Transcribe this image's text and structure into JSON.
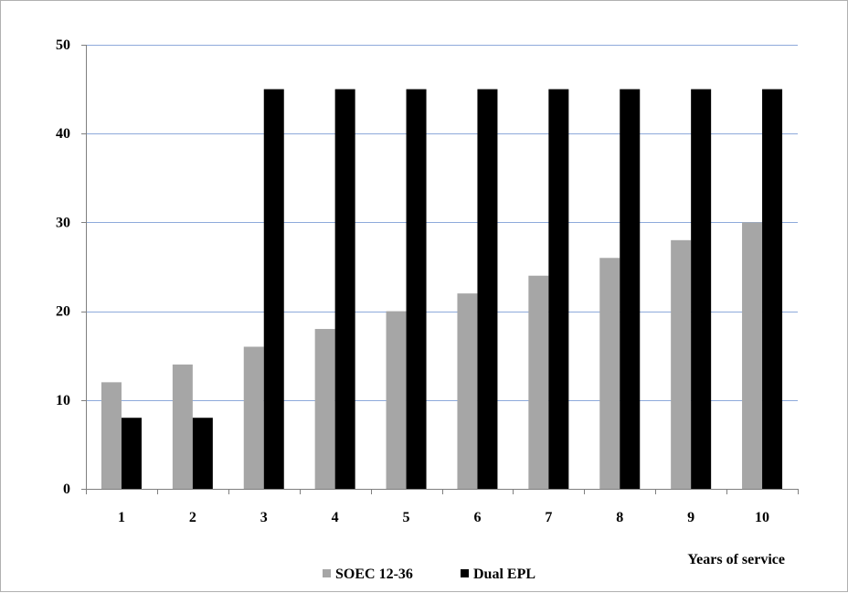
{
  "chart_data": {
    "type": "bar",
    "title": "",
    "xlabel": "Years of service",
    "ylabel": "",
    "categories": [
      "1",
      "2",
      "3",
      "4",
      "5",
      "6",
      "7",
      "8",
      "9",
      "10"
    ],
    "series": [
      {
        "name": "SOEC 12-36",
        "color": "#a6a6a6",
        "values": [
          12,
          14,
          16,
          18,
          20,
          22,
          24,
          26,
          28,
          30
        ]
      },
      {
        "name": "Dual EPL",
        "color": "#000000",
        "values": [
          8,
          8,
          45,
          45,
          45,
          45,
          45,
          45,
          45,
          45
        ]
      }
    ],
    "ylim": [
      0,
      50
    ],
    "yticks": [
      "0",
      "10",
      "20",
      "30",
      "40",
      "50"
    ],
    "grid": true,
    "gridline_color": "#8eaadb",
    "legend_position": "bottom"
  }
}
